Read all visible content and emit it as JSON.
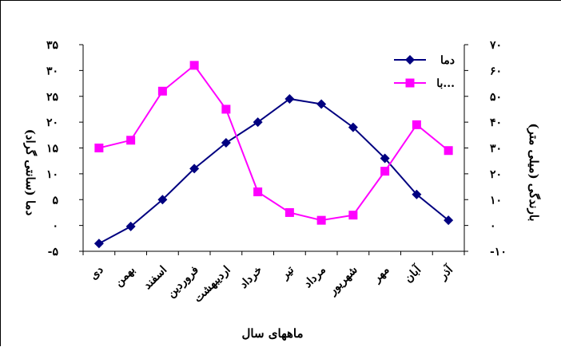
{
  "chart_data": {
    "type": "line",
    "categories": [
      "دی",
      "بهمن",
      "اسفند",
      "فروردین",
      "اردیبهشت",
      "خرداد",
      "تیر",
      "مرداد",
      "شهریور",
      "مهر",
      "آبان",
      "آذر"
    ],
    "series": [
      {
        "name": "دما",
        "axis": "left",
        "color": "#000080",
        "marker": "diamond",
        "values": [
          -3.5,
          -0.2,
          5.0,
          11.0,
          16.0,
          20.0,
          24.5,
          23.5,
          19.0,
          13.0,
          6.0,
          1.0
        ]
      },
      {
        "name": "با...",
        "axis": "right",
        "color": "#FF00FF",
        "marker": "square",
        "values": [
          30,
          33,
          52,
          62,
          45,
          13,
          5,
          2,
          4,
          21,
          39,
          29
        ]
      }
    ],
    "left_axis": {
      "label": "دما (سانتی گراد)",
      "range": [
        -5,
        35
      ],
      "ticks": [
        {
          "v": 35,
          "label": "۳۵"
        },
        {
          "v": 30,
          "label": "۳۰"
        },
        {
          "v": 25,
          "label": "۲۵"
        },
        {
          "v": 20,
          "label": "۲۰"
        },
        {
          "v": 15,
          "label": "۱۵"
        },
        {
          "v": 10,
          "label": "۱۰"
        },
        {
          "v": 5,
          "label": "۵"
        },
        {
          "v": 0,
          "label": "۰"
        },
        {
          "v": -5,
          "label": "-۵"
        }
      ]
    },
    "right_axis": {
      "label": "بارندگی (میلی متر)",
      "range": [
        -10,
        70
      ],
      "ticks": [
        {
          "v": 70,
          "label": "۷۰"
        },
        {
          "v": 60,
          "label": "۶۰"
        },
        {
          "v": 50,
          "label": "۵۰"
        },
        {
          "v": 40,
          "label": "۴۰"
        },
        {
          "v": 30,
          "label": "۳۰"
        },
        {
          "v": 20,
          "label": "۲۰"
        },
        {
          "v": 10,
          "label": "۱۰"
        },
        {
          "v": 0,
          "label": "۰"
        },
        {
          "v": -10,
          "label": "-۱۰"
        }
      ]
    },
    "xlabel": "ماههای سال",
    "legend": "top-right",
    "grid": false
  }
}
